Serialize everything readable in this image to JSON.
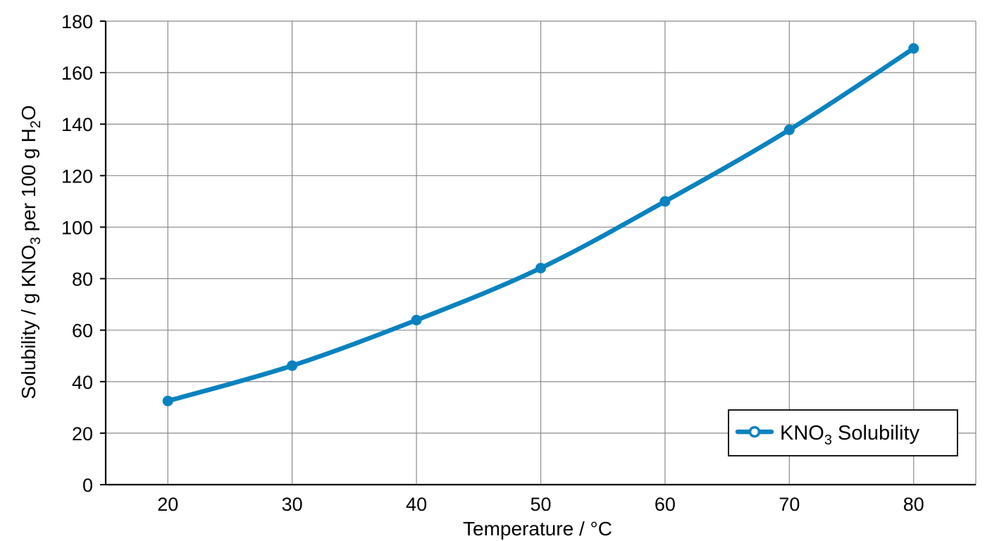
{
  "chart_data": {
    "type": "line",
    "x": [
      20,
      30,
      40,
      50,
      60,
      70,
      80
    ],
    "series": [
      {
        "name": "KNO3 Solubility",
        "values": [
          32.5,
          46.2,
          63.9,
          84.1,
          110.0,
          137.8,
          169.4
        ]
      }
    ],
    "xlabel": "Temperature / °C",
    "ylabel_parts": [
      "Solubility / g KNO",
      "3",
      " per 100 g H",
      "2",
      "O"
    ],
    "legend_parts": [
      "KNO",
      "3",
      " Solubility"
    ],
    "xticks": [
      20,
      30,
      40,
      50,
      60,
      70,
      80
    ],
    "yticks": [
      0,
      20,
      40,
      60,
      80,
      100,
      120,
      140,
      160,
      180
    ],
    "xlim": [
      15,
      85
    ],
    "ylim": [
      0,
      180
    ],
    "grid": true,
    "legend_position": "bottom-right",
    "colors": {
      "series": "#0a82bf",
      "grid": "#8a8a8a",
      "axis": "#000000"
    }
  }
}
